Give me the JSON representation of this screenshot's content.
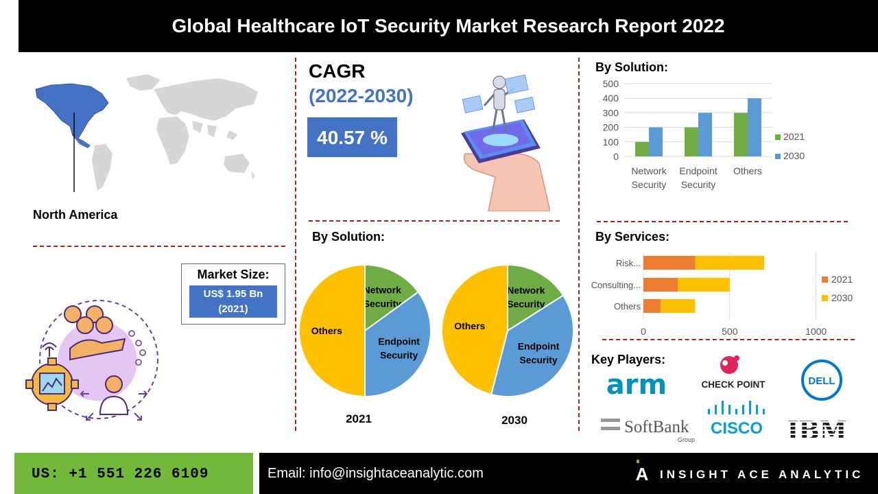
{
  "title": "Global Healthcare IoT Security Market  Research Report 2022",
  "region": {
    "label": "North America"
  },
  "market_size": {
    "title": "Market Size:",
    "value": "US$ 1.95 Bn",
    "year": "(2021)"
  },
  "cagr": {
    "label": "CAGR",
    "period": "(2022-2030)",
    "value": "40.57 %"
  },
  "colors": {
    "accent_blue": "#4472c4",
    "green": "#70ad47",
    "orange": "#ed7d31",
    "yellow": "#ffc000",
    "pie_blue": "#5b9bd5",
    "divider_red": "#b01c1c"
  },
  "chart_data": [
    {
      "type": "bar",
      "title": "By Solution:",
      "categories": [
        "Network Security",
        "Endpoint Security",
        "Others"
      ],
      "category_lines": [
        [
          "Network",
          "Security"
        ],
        [
          "Endpoint",
          "Security"
        ],
        [
          "Others"
        ]
      ],
      "series": [
        {
          "name": "2021",
          "values": [
            100,
            200,
            300
          ]
        },
        {
          "name": "2030",
          "values": [
            200,
            300,
            400
          ]
        }
      ],
      "ylim": [
        0,
        500
      ],
      "yticks": [
        "0",
        "100",
        "200",
        "300",
        "400",
        "500"
      ],
      "grid": true,
      "legend": "right"
    },
    {
      "type": "pie",
      "title": "By Solution:",
      "caption": "2021",
      "labels": [
        "Network Security",
        "Endpoint Security",
        "Others"
      ],
      "label_lines": [
        [
          "Network",
          "Security"
        ],
        [
          "Endpoint",
          "Security"
        ],
        [
          "Others"
        ]
      ],
      "values": [
        15,
        35,
        50
      ]
    },
    {
      "type": "pie",
      "caption": "2030",
      "labels": [
        "Network Security",
        "Endpoint Security",
        "Others"
      ],
      "label_lines": [
        [
          "Network",
          "Security"
        ],
        [
          "Endpoint",
          "Security"
        ],
        [
          "Others"
        ]
      ],
      "values": [
        16,
        38,
        46
      ]
    },
    {
      "type": "bar",
      "orientation": "horizontal",
      "stacked": true,
      "title": "By Services:",
      "categories": [
        "Risk...",
        "Consulting...",
        "Others"
      ],
      "series": [
        {
          "name": "2021",
          "values": [
            300,
            200,
            100
          ]
        },
        {
          "name": "2030",
          "values": [
            400,
            300,
            200
          ]
        }
      ],
      "xlim": [
        0,
        1200
      ],
      "xticks": [
        "0",
        "500",
        "1000"
      ],
      "legend": "right"
    }
  ],
  "key_players": {
    "title": "Key Players:",
    "logos": [
      "arm",
      "CHECK POINT",
      "DELL",
      "SoftBank",
      "Group",
      "CISCO",
      "IBM"
    ]
  },
  "footer": {
    "phone": "US: +1 551 226 6109",
    "email": "Email: info@insightaceanalytic.com",
    "brand": "INSIGHT ACE ANALYTIC",
    "brand_mark": "A"
  }
}
